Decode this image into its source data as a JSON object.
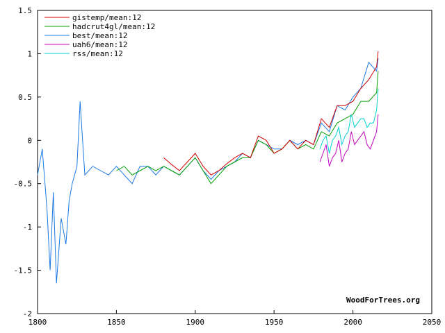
{
  "chart_data": {
    "type": "line",
    "xlim": [
      1800,
      2050
    ],
    "ylim": [
      -2,
      1.5
    ],
    "x_ticks": [
      1800,
      1850,
      1900,
      1950,
      2000,
      2050
    ],
    "y_ticks": [
      1.5,
      1,
      0.5,
      0,
      -0.5,
      -1,
      -1.5,
      -2
    ],
    "x_tick_labels": [
      "1800",
      "1850",
      "1900",
      "1950",
      "2000",
      "2050"
    ],
    "y_tick_labels": [
      "1.5",
      "1",
      "0.5",
      "0",
      "-0.5",
      "-1",
      "-1.5",
      "-2"
    ],
    "grid": false,
    "legend_position": "top-left",
    "credit": "WoodForTrees.org",
    "series": [
      {
        "name": "gistemp/mean:12",
        "color": "#d40000",
        "x": [
          1880,
          1885,
          1890,
          1895,
          1900,
          1905,
          1910,
          1915,
          1920,
          1925,
          1930,
          1935,
          1940,
          1945,
          1950,
          1955,
          1960,
          1965,
          1970,
          1975,
          1980,
          1985,
          1990,
          1995,
          2000,
          2005,
          2010,
          2015,
          2016
        ],
        "y": [
          -0.2,
          -0.28,
          -0.35,
          -0.25,
          -0.15,
          -0.3,
          -0.4,
          -0.35,
          -0.27,
          -0.2,
          -0.15,
          -0.2,
          0.05,
          0.0,
          -0.15,
          -0.1,
          0.0,
          -0.1,
          0.0,
          -0.05,
          0.25,
          0.15,
          0.4,
          0.4,
          0.45,
          0.6,
          0.7,
          0.85,
          1.03
        ]
      },
      {
        "name": "hadcrut4gl/mean:12",
        "color": "#00a000",
        "x": [
          1850,
          1855,
          1860,
          1865,
          1870,
          1875,
          1880,
          1885,
          1890,
          1895,
          1900,
          1905,
          1910,
          1915,
          1920,
          1925,
          1930,
          1935,
          1940,
          1945,
          1950,
          1955,
          1960,
          1965,
          1970,
          1975,
          1980,
          1985,
          1990,
          1995,
          2000,
          2005,
          2010,
          2015,
          2016
        ],
        "y": [
          -0.35,
          -0.3,
          -0.4,
          -0.35,
          -0.3,
          -0.35,
          -0.3,
          -0.35,
          -0.4,
          -0.3,
          -0.2,
          -0.35,
          -0.5,
          -0.4,
          -0.3,
          -0.25,
          -0.2,
          -0.2,
          0.0,
          -0.05,
          -0.15,
          -0.1,
          0.0,
          -0.1,
          -0.05,
          -0.1,
          0.1,
          0.05,
          0.2,
          0.25,
          0.3,
          0.45,
          0.45,
          0.55,
          0.8
        ]
      },
      {
        "name": "best/mean:12",
        "color": "#1a78e6",
        "x": [
          1800,
          1803,
          1806,
          1808,
          1810,
          1812,
          1815,
          1818,
          1820,
          1822,
          1825,
          1827,
          1830,
          1835,
          1840,
          1845,
          1850,
          1855,
          1860,
          1865,
          1870,
          1875,
          1880,
          1885,
          1890,
          1895,
          1900,
          1905,
          1910,
          1915,
          1920,
          1925,
          1930,
          1935,
          1940,
          1945,
          1950,
          1955,
          1960,
          1965,
          1970,
          1975,
          1980,
          1985,
          1990,
          1995,
          2000,
          2005,
          2010,
          2015,
          2016
        ],
        "y": [
          -0.4,
          -0.1,
          -0.8,
          -1.5,
          -0.6,
          -1.65,
          -0.9,
          -1.2,
          -0.7,
          -0.5,
          -0.3,
          0.45,
          -0.4,
          -0.3,
          -0.35,
          -0.4,
          -0.3,
          -0.4,
          -0.5,
          -0.3,
          -0.3,
          -0.4,
          -0.3,
          -0.35,
          -0.4,
          -0.3,
          -0.2,
          -0.35,
          -0.45,
          -0.35,
          -0.3,
          -0.25,
          -0.15,
          -0.2,
          0.0,
          -0.05,
          -0.1,
          -0.1,
          0.0,
          -0.05,
          0.0,
          -0.05,
          0.2,
          0.1,
          0.4,
          0.35,
          0.5,
          0.6,
          0.9,
          0.8,
          0.95
        ]
      },
      {
        "name": "uah6/mean:12",
        "color": "#c000c0",
        "x": [
          1979,
          1981,
          1983,
          1985,
          1987,
          1989,
          1991,
          1993,
          1995,
          1997,
          1999,
          2001,
          2003,
          2005,
          2007,
          2009,
          2011,
          2013,
          2015,
          2016
        ],
        "y": [
          -0.25,
          -0.15,
          -0.05,
          -0.3,
          -0.2,
          -0.15,
          0.0,
          -0.25,
          -0.15,
          -0.1,
          0.1,
          -0.05,
          0.0,
          0.05,
          0.1,
          -0.05,
          -0.1,
          0.0,
          0.1,
          0.3
        ]
      },
      {
        "name": "rss/mean:12",
        "color": "#00d0d0",
        "x": [
          1979,
          1981,
          1983,
          1985,
          1987,
          1989,
          1991,
          1993,
          1995,
          1997,
          1999,
          2001,
          2003,
          2005,
          2007,
          2009,
          2011,
          2013,
          2015,
          2016
        ],
        "y": [
          -0.1,
          0.0,
          0.05,
          -0.15,
          0.0,
          0.05,
          0.15,
          -0.05,
          0.05,
          0.1,
          0.3,
          0.15,
          0.2,
          0.25,
          0.25,
          0.15,
          0.2,
          0.2,
          0.35,
          0.6
        ]
      }
    ]
  }
}
